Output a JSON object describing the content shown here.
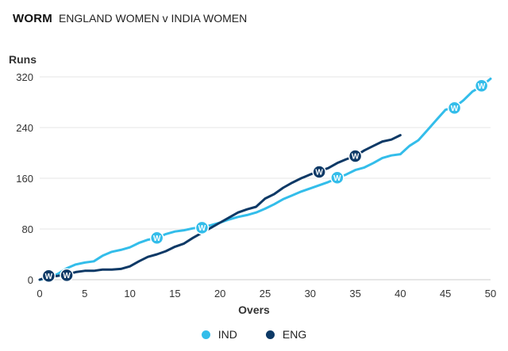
{
  "header": {
    "title": "WORM",
    "subtitle": "ENGLAND WOMEN v INDIA WOMEN"
  },
  "colors": {
    "IND": "#33bdea",
    "ENG": "#0d3966",
    "grid": "#e6e6e6"
  },
  "chart_data": {
    "type": "line",
    "title": "WORM",
    "subtitle": "ENGLAND WOMEN v INDIA WOMEN",
    "xlabel": "Overs",
    "ylabel": "Runs",
    "xlim": [
      0,
      50
    ],
    "ylim": [
      0,
      320
    ],
    "xticks": [
      0,
      5,
      10,
      15,
      20,
      25,
      30,
      35,
      40,
      45,
      50
    ],
    "yticks": [
      0,
      80,
      160,
      240,
      320
    ],
    "wicket_marker": "W",
    "series": [
      {
        "name": "IND",
        "color": "#33bdea",
        "points": [
          [
            0,
            0
          ],
          [
            1,
            3
          ],
          [
            2,
            9
          ],
          [
            3,
            18
          ],
          [
            4,
            24
          ],
          [
            5,
            27
          ],
          [
            6,
            29
          ],
          [
            7,
            38
          ],
          [
            8,
            44
          ],
          [
            9,
            47
          ],
          [
            10,
            51
          ],
          [
            11,
            58
          ],
          [
            12,
            63
          ],
          [
            13,
            66
          ],
          [
            14,
            72
          ],
          [
            15,
            76
          ],
          [
            16,
            78
          ],
          [
            17,
            81
          ],
          [
            18,
            83
          ],
          [
            19,
            86
          ],
          [
            20,
            90
          ],
          [
            21,
            95
          ],
          [
            22,
            99
          ],
          [
            23,
            102
          ],
          [
            24,
            106
          ],
          [
            25,
            112
          ],
          [
            26,
            119
          ],
          [
            27,
            127
          ],
          [
            28,
            133
          ],
          [
            29,
            139
          ],
          [
            30,
            144
          ],
          [
            31,
            149
          ],
          [
            32,
            154
          ],
          [
            33,
            160
          ],
          [
            34,
            166
          ],
          [
            35,
            173
          ],
          [
            36,
            177
          ],
          [
            37,
            184
          ],
          [
            38,
            192
          ],
          [
            39,
            196
          ],
          [
            40,
            198
          ],
          [
            41,
            211
          ],
          [
            42,
            220
          ],
          [
            43,
            236
          ],
          [
            44,
            252
          ],
          [
            45,
            268
          ],
          [
            46,
            272
          ],
          [
            47,
            283
          ],
          [
            48,
            297
          ],
          [
            49,
            305
          ],
          [
            50,
            317
          ]
        ],
        "wickets": [
          [
            13,
            66
          ],
          [
            18,
            82
          ],
          [
            33,
            161
          ],
          [
            46,
            271
          ],
          [
            49,
            306
          ]
        ]
      },
      {
        "name": "ENG",
        "color": "#0d3966",
        "points": [
          [
            0,
            0
          ],
          [
            1,
            5
          ],
          [
            2,
            6
          ],
          [
            3,
            8
          ],
          [
            4,
            12
          ],
          [
            5,
            14
          ],
          [
            6,
            14
          ],
          [
            7,
            16
          ],
          [
            8,
            16
          ],
          [
            9,
            17
          ],
          [
            10,
            21
          ],
          [
            11,
            29
          ],
          [
            12,
            36
          ],
          [
            13,
            40
          ],
          [
            14,
            45
          ],
          [
            15,
            52
          ],
          [
            16,
            57
          ],
          [
            17,
            66
          ],
          [
            18,
            74
          ],
          [
            19,
            82
          ],
          [
            20,
            90
          ],
          [
            21,
            98
          ],
          [
            22,
            106
          ],
          [
            23,
            111
          ],
          [
            24,
            115
          ],
          [
            25,
            128
          ],
          [
            26,
            135
          ],
          [
            27,
            145
          ],
          [
            28,
            153
          ],
          [
            29,
            160
          ],
          [
            30,
            166
          ],
          [
            31,
            171
          ],
          [
            32,
            176
          ],
          [
            33,
            184
          ],
          [
            34,
            190
          ],
          [
            35,
            195
          ],
          [
            36,
            204
          ],
          [
            37,
            211
          ],
          [
            38,
            218
          ],
          [
            39,
            221
          ],
          [
            40,
            228
          ]
        ],
        "wickets": [
          [
            1,
            6
          ],
          [
            3,
            7
          ],
          [
            31,
            170
          ],
          [
            35,
            195
          ]
        ]
      }
    ],
    "legend": [
      "IND",
      "ENG"
    ],
    "legend_position": "bottom-center"
  }
}
